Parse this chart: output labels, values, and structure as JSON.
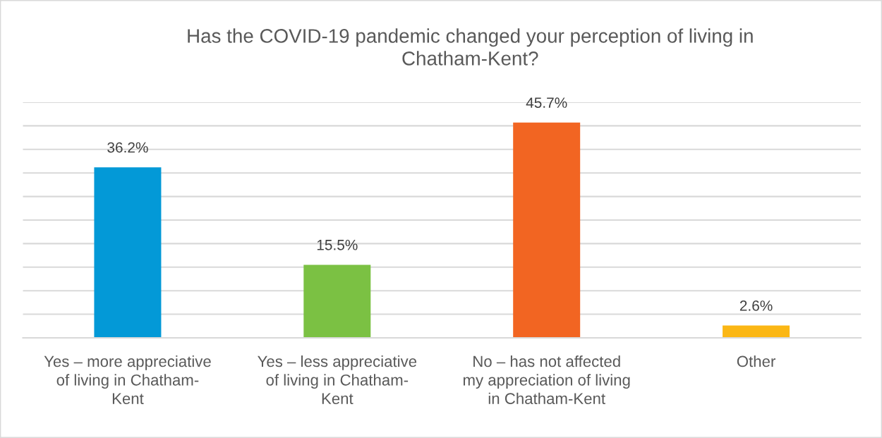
{
  "chart_data": {
    "type": "bar",
    "title": "Has the COVID-19 pandemic changed your perception of living in Chatham-Kent?",
    "categories": [
      "Yes – more appreciative of living in Chatham-Kent",
      "Yes – less appreciative of living in Chatham-Kent",
      "No – has not affected my appreciation of living in Chatham-Kent",
      "Other"
    ],
    "values": [
      36.2,
      15.5,
      45.7,
      2.6
    ],
    "colors": [
      "#0399d7",
      "#7bc143",
      "#f26522",
      "#fbb715"
    ],
    "value_labels": [
      "36.2%",
      "15.5%",
      "45.7%",
      "2.6%"
    ],
    "ylim": [
      0,
      50
    ],
    "yticks": [
      {
        "value": 0,
        "label": null
      },
      {
        "value": 5,
        "label": null
      },
      {
        "value": 10,
        "label": null
      },
      {
        "value": 15,
        "label": null
      },
      {
        "value": 20,
        "label": null
      },
      {
        "value": 25,
        "label": null
      },
      {
        "value": 30,
        "label": null
      },
      {
        "value": 35,
        "label": null
      },
      {
        "value": 40,
        "label": null
      },
      {
        "value": 45,
        "label": null
      },
      {
        "value": 50,
        "label": null
      }
    ],
    "grid": "y",
    "tick_labels": "x"
  }
}
